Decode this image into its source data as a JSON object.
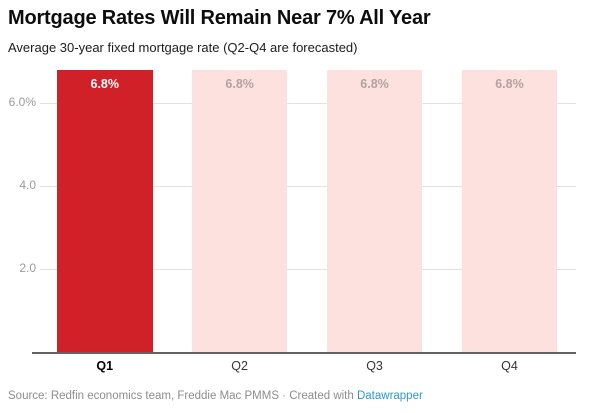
{
  "header": {
    "title": "Mortgage Rates Will Remain Near 7% All Year",
    "subtitle": "Average 30-year fixed mortgage rate (Q2-Q4 are forecasted)"
  },
  "footer": {
    "source_text": "Source: Redfin economics team, Freddie Mac PMMS · Created with ",
    "credit_link": "Datawrapper"
  },
  "colors": {
    "actual_bar": "#cf2127",
    "forecast_bar": "#fde1de",
    "actual_value_label": "#ffffff",
    "forecast_value_label": "#b3a2a1",
    "gridline": "#e2e2e2",
    "axis_line": "#636363",
    "ytick_text": "#9b9b9b",
    "link_blue": "#2d96d3"
  },
  "chart_data": {
    "type": "bar",
    "title": "Mortgage Rates Will Remain Near 7% All Year",
    "subtitle": "Average 30-year fixed mortgage rate (Q2-Q4 are forecasted)",
    "categories": [
      "Q1",
      "Q2",
      "Q3",
      "Q4"
    ],
    "values": [
      6.8,
      6.8,
      6.8,
      6.8
    ],
    "value_labels": [
      "6.8%",
      "6.8%",
      "6.8%",
      "6.8%"
    ],
    "forecast": [
      false,
      true,
      true,
      true
    ],
    "emphasized": [
      true,
      false,
      false,
      false
    ],
    "xlabel": "",
    "ylabel": "",
    "ylim": [
      0,
      7
    ],
    "yticks": [
      {
        "value": 2.0,
        "label": "2.0"
      },
      {
        "value": 4.0,
        "label": "4.0"
      },
      {
        "value": 6.0,
        "label": "6.0%"
      }
    ],
    "grid": "horizontal-behind-bars",
    "legend": "none"
  }
}
